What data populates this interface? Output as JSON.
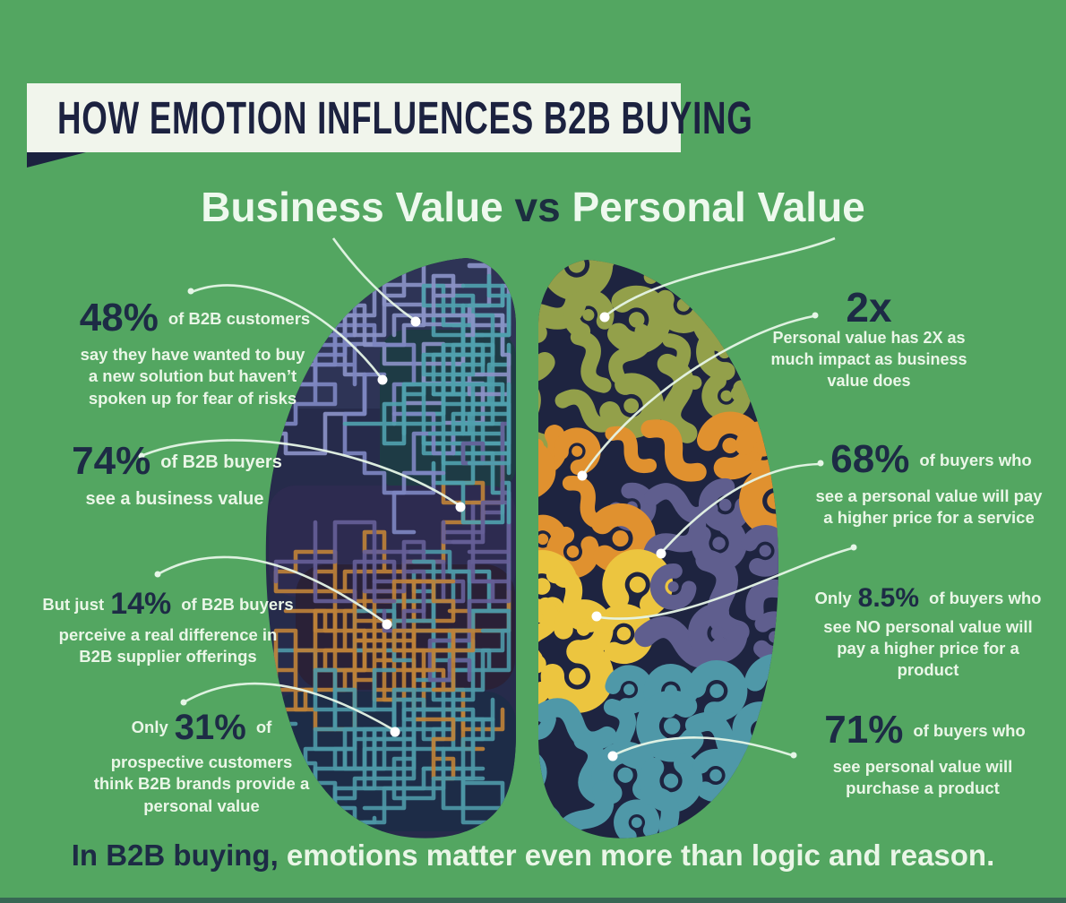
{
  "title": "HOW EMOTION INFLUENCES B2B BUYING",
  "subtitle": {
    "left": "Business Value",
    "vs": "vs",
    "right": "Personal Value"
  },
  "stats": {
    "s48": {
      "value": "48%",
      "text": "of B2B customers\nsay they have wanted to buy\na new solution but haven’t\nspoken up for fear of risks"
    },
    "s74": {
      "value": "74%",
      "text": "of B2B buyers\nsee a business value"
    },
    "s14": {
      "prefix": "But just",
      "value": "14%",
      "text": "of B2B buyers\nperceive a real difference in\nB2B supplier offerings"
    },
    "s31": {
      "prefix": "Only",
      "value": "31%",
      "text": "of\nprospective customers\nthink B2B brands provide a\npersonal value"
    },
    "s2x": {
      "value": "2x",
      "text": "Personal value has 2X as\nmuch impact as business\nvalue does"
    },
    "s68": {
      "value": "68%",
      "text": "of buyers who\nsee a personal value will pay\na higher price for a service"
    },
    "s85": {
      "prefix": "Only",
      "value": "8.5%",
      "text": "of buyers who\nsee NO personal value will\npay a higher price for a\nproduct"
    },
    "s71": {
      "value": "71%",
      "text": "of buyers who\nsee personal value will\npurchase a product"
    }
  },
  "footer": {
    "dark": "In B2B buying,",
    "light": " emotions matter even more than logic and reason."
  },
  "palette": {
    "background": "#53a661",
    "banner": "#f1f5ec",
    "navy": "#1c2240",
    "text_light": "#eaf6e7",
    "brain_base_left": "#262b4b",
    "brain_base_right": "#1e2440",
    "maze_bg_top": "#2e3456",
    "maze_bg_teal": "#1e3b45",
    "maze_bg_purple": "#2d2b50",
    "maze_bg_orange": "#2a2137",
    "maze_bg_teal_bottom": "#1d2c47",
    "maze_periwinkle": "#8a91c6",
    "maze_light_blue": "#7d86c0",
    "maze_teal": "#4fa0ad",
    "maze_purple": "#655e97",
    "maze_orange": "#bd8138",
    "maze_teal_dark": "#4d97a6",
    "swirl_olive": "#93a04a",
    "swirl_orange": "#e0912f",
    "swirl_slate": "#5f5e8e",
    "swirl_yellow": "#ecc53f",
    "swirl_teal": "#4f98a8",
    "callout": "#e6f6e7"
  }
}
